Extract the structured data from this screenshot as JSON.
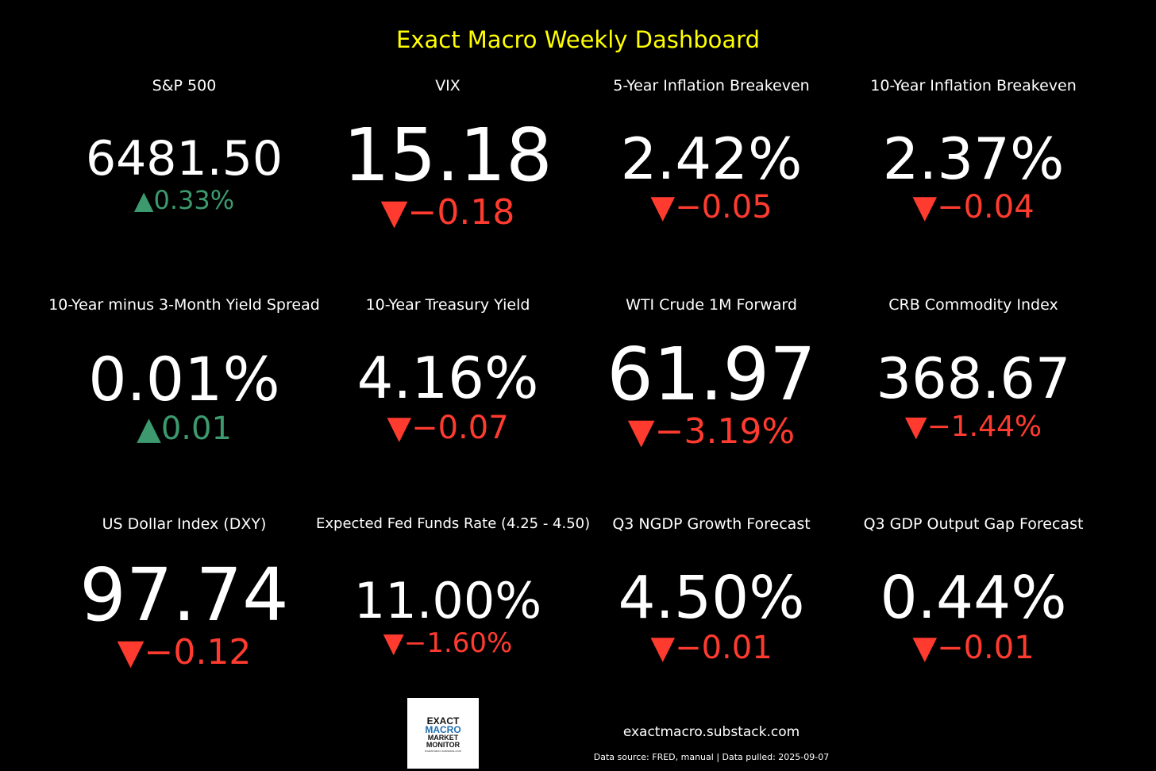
{
  "title": "Exact Macro Weekly Dashboard",
  "colors": {
    "background": "#000000",
    "title": "#ffff00",
    "up": "#3c9a6e",
    "down": "#ff3b30",
    "text": "#ffffff"
  },
  "chart_data": {
    "type": "table",
    "title": "Exact Macro Weekly Dashboard",
    "metrics": [
      {
        "label": "S&P 500",
        "value": "6481.50",
        "direction": "up",
        "arrow": "▲",
        "change": "0.33%"
      },
      {
        "label": "VIX",
        "value": "15.18",
        "direction": "down",
        "arrow": "▼",
        "change": "−0.18"
      },
      {
        "label": "5-Year Inflation Breakeven",
        "value": "2.42%",
        "direction": "down",
        "arrow": "▼",
        "change": "−0.05"
      },
      {
        "label": "10-Year Inflation Breakeven",
        "value": "2.37%",
        "direction": "down",
        "arrow": "▼",
        "change": "−0.04"
      },
      {
        "label": "10-Year minus 3-Month Yield Spread",
        "value": "0.01%",
        "direction": "up",
        "arrow": "▲",
        "change": "0.01"
      },
      {
        "label": "10-Year Treasury Yield",
        "value": "4.16%",
        "direction": "down",
        "arrow": "▼",
        "change": "−0.07"
      },
      {
        "label": "WTI Crude 1M Forward",
        "value": "61.97",
        "direction": "down",
        "arrow": "▼",
        "change": "−3.19%"
      },
      {
        "label": "CRB Commodity Index",
        "value": "368.67",
        "direction": "down",
        "arrow": "▼",
        "change": "−1.44%"
      },
      {
        "label": "US Dollar Index (DXY)",
        "value": "97.74",
        "direction": "down",
        "arrow": "▼",
        "change": "−0.12"
      },
      {
        "label": "Expected Fed Funds Rate (4.25 - 4.50)",
        "value": "11.00%",
        "direction": "down",
        "arrow": "▼",
        "change": "−1.60%"
      },
      {
        "label": "Q3 NGDP Growth Forecast",
        "value": "4.50%",
        "direction": "down",
        "arrow": "▼",
        "change": "−0.01"
      },
      {
        "label": "Q3 GDP Output Gap Forecast",
        "value": "0.44%",
        "direction": "down",
        "arrow": "▼",
        "change": "−0.01"
      }
    ]
  },
  "logo": {
    "line1": "EXACT",
    "line2": "MACRO",
    "line3": "MARKET",
    "line4": "MONITOR",
    "line5": "exactmacro.substack.com"
  },
  "footer": {
    "url": "exactmacro.substack.com",
    "source": "Data source: FRED, manual | Data pulled: 2025-09-07"
  }
}
